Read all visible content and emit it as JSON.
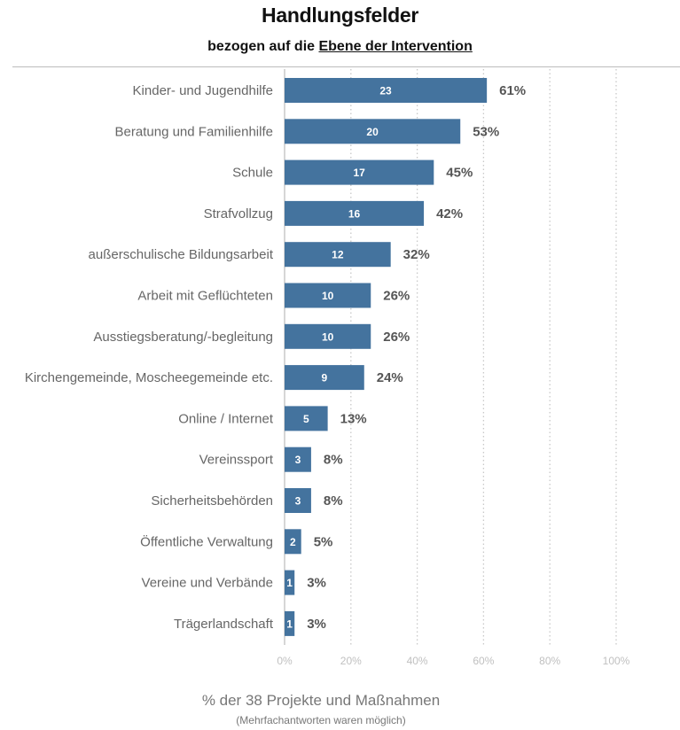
{
  "header": {
    "title": "Handlungsfelder",
    "subtitle_prefix": "bezogen auf die ",
    "subtitle_emphasis": "Ebene der Intervention"
  },
  "colors": {
    "bar": "#44739e",
    "grid": "#c8c8c8",
    "axis": "#bbbbbb"
  },
  "chart_data": {
    "type": "bar",
    "orientation": "horizontal",
    "categories": [
      "Kinder- und Jugendhilfe",
      "Beratung und Familienhilfe",
      "Schule",
      "Strafvollzug",
      "außerschulische Bildungsarbeit",
      "Arbeit mit Geflüchteten",
      "Ausstiegsberatung/-begleitung",
      "Kirchengemeinde, Moscheegemeinde etc.",
      "Online / Internet",
      "Vereinssport",
      "Sicherheitsbehörden",
      "Öffentliche Verwaltung",
      "Vereine und Verbände",
      "Trägerlandschaft"
    ],
    "counts": [
      23,
      20,
      17,
      16,
      12,
      10,
      10,
      9,
      5,
      3,
      3,
      2,
      1,
      1
    ],
    "percent_labels": [
      "61%",
      "53%",
      "45%",
      "42%",
      "32%",
      "26%",
      "26%",
      "24%",
      "13%",
      "8%",
      "8%",
      "5%",
      "3%",
      "3%"
    ],
    "values": [
      61,
      53,
      45,
      42,
      32,
      26,
      26,
      24,
      13,
      8,
      8,
      5,
      3,
      3
    ],
    "xlim": [
      0,
      100
    ],
    "xticks": [
      "0%",
      "20%",
      "40%",
      "60%",
      "80%",
      "100%"
    ],
    "xlabel": "% der 38 Projekte und Maßnahmen",
    "note": "(Mehrfachantworten waren möglich)",
    "grid": "vertical-dotted",
    "legend": "none"
  }
}
